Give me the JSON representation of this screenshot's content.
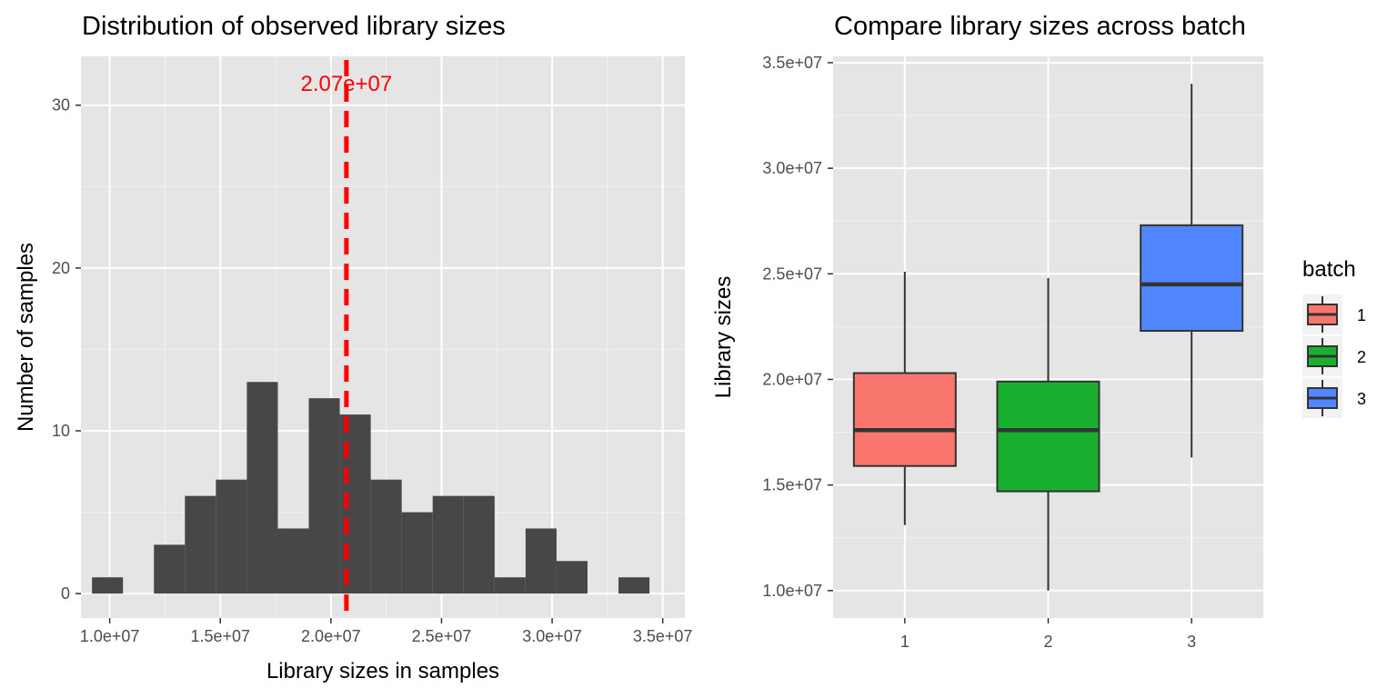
{
  "chart_data": [
    {
      "type": "histogram",
      "title": "Distribution of observed library sizes",
      "xlabel": "Library sizes in samples",
      "ylabel": "Number of samples",
      "xlim": [
        8700000,
        36000000
      ],
      "ylim": [
        -1.5,
        33
      ],
      "x_ticks": [
        10000000,
        15000000,
        20000000,
        25000000,
        30000000,
        35000000
      ],
      "x_tick_labels": [
        "1.0e+07",
        "1.5e+07",
        "2.0e+07",
        "2.5e+07",
        "3.0e+07",
        "3.5e+07"
      ],
      "y_ticks": [
        0,
        10,
        20,
        30
      ],
      "y_tick_labels": [
        "0",
        "10",
        "20",
        "30"
      ],
      "bin_width": 1400000,
      "bins": [
        {
          "x0": 9200000,
          "x1": 10600000,
          "count": 1
        },
        {
          "x0": 10600000,
          "x1": 12000000,
          "count": 0
        },
        {
          "x0": 12000000,
          "x1": 13400000,
          "count": 3
        },
        {
          "x0": 13400000,
          "x1": 14800000,
          "count": 6
        },
        {
          "x0": 14800000,
          "x1": 16200000,
          "count": 7
        },
        {
          "x0": 16200000,
          "x1": 17600000,
          "count": 13
        },
        {
          "x0": 17600000,
          "x1": 19000000,
          "count": 4
        },
        {
          "x0": 19000000,
          "x1": 20400000,
          "count": 12
        },
        {
          "x0": 20400000,
          "x1": 21800000,
          "count": 11
        },
        {
          "x0": 21800000,
          "x1": 23200000,
          "count": 7
        },
        {
          "x0": 23200000,
          "x1": 24600000,
          "count": 5
        },
        {
          "x0": 24600000,
          "x1": 26000000,
          "count": 6
        },
        {
          "x0": 26000000,
          "x1": 27400000,
          "count": 6
        },
        {
          "x0": 27400000,
          "x1": 28800000,
          "count": 1
        },
        {
          "x0": 28800000,
          "x1": 30200000,
          "count": 4
        },
        {
          "x0": 30200000,
          "x1": 31600000,
          "count": 2
        },
        {
          "x0": 31600000,
          "x1": 33000000,
          "count": 0
        },
        {
          "x0": 33000000,
          "x1": 34400000,
          "count": 1
        }
      ],
      "bar_color": "#474747",
      "mean_line": {
        "value": 20700000,
        "label": "2.07e+07",
        "color": "#ff0000"
      },
      "grid": true
    },
    {
      "type": "boxplot",
      "title": "Compare library sizes across batch",
      "xlabel": "",
      "ylabel": "Library sizes",
      "ylim": [
        8700000,
        35300000
      ],
      "categories": [
        "1",
        "2",
        "3"
      ],
      "y_ticks": [
        10000000,
        15000000,
        20000000,
        25000000,
        30000000,
        35000000
      ],
      "y_tick_labels": [
        "1.0e+07",
        "1.5e+07",
        "2.0e+07",
        "2.5e+07",
        "3.0e+07",
        "3.5e+07"
      ],
      "boxes": [
        {
          "category": "1",
          "min": 13100000,
          "q1": 15900000,
          "median": 17600000,
          "q3": 20300000,
          "max": 25100000,
          "color": "#f8766d"
        },
        {
          "category": "2",
          "min": 10000000,
          "q1": 14700000,
          "median": 17600000,
          "q3": 19900000,
          "max": 24800000,
          "color": "#1ab02f"
        },
        {
          "category": "3",
          "min": 16300000,
          "q1": 22300000,
          "median": 24500000,
          "q3": 27300000,
          "max": 34000000,
          "color": "#5086ff"
        }
      ],
      "legend": {
        "title": "batch",
        "placement": "right",
        "entries": [
          {
            "label": "1",
            "color": "#f8766d"
          },
          {
            "label": "2",
            "color": "#1ab02f"
          },
          {
            "label": "3",
            "color": "#5086ff"
          }
        ]
      },
      "grid": true
    }
  ]
}
